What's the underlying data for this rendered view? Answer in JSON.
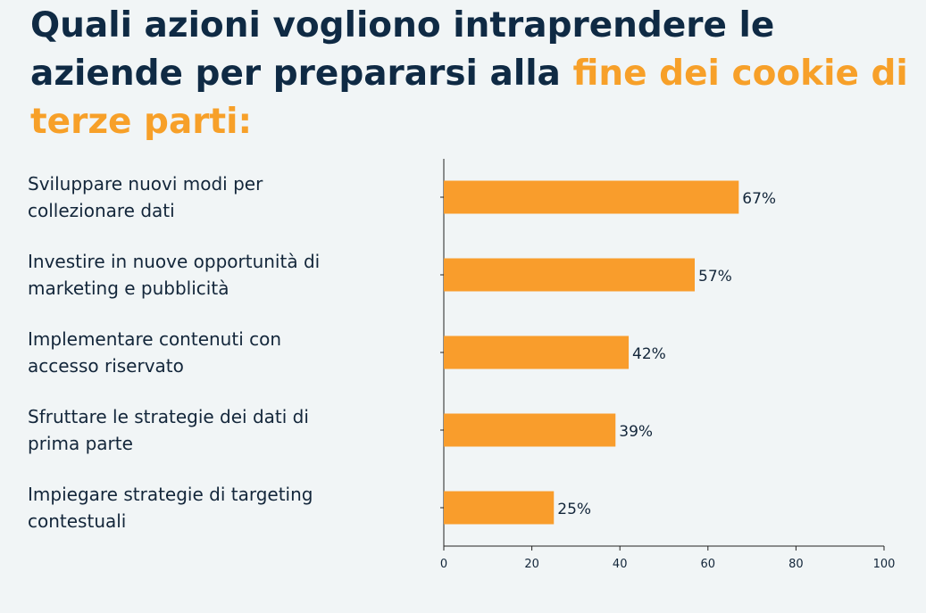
{
  "title": {
    "part1": "Quali azioni vogliono intraprendere le aziende per prepararsi alla ",
    "highlight": "fine dei cookie di terze parti:"
  },
  "colors": {
    "title": "#0f2a44",
    "highlight": "#f7a029",
    "bar": "#f99d2c",
    "background": "#f1f5f6",
    "text": "#13263a"
  },
  "chart_data": {
    "type": "bar",
    "orientation": "horizontal",
    "categories": [
      "Sviluppare nuovi modi per collezionare dati",
      "Investire in nuove opportunità di marketing e pubblicità",
      "Implementare contenuti con accesso riservato",
      "Sfruttare le strategie dei dati di prima parte",
      "Impiegare strategie di targeting contestuali"
    ],
    "category_lines": [
      [
        "Sviluppare nuovi modi per",
        "collezionare dati"
      ],
      [
        "Investire in nuove opportunità di",
        "marketing e pubblicità"
      ],
      [
        "Implementare contenuti con",
        "accesso riservato"
      ],
      [
        "Sfruttare le strategie dei dati di",
        "prima parte"
      ],
      [
        "Impiegare strategie di targeting",
        "contestuali"
      ]
    ],
    "values": [
      67,
      57,
      42,
      39,
      25
    ],
    "value_labels": [
      "67%",
      "57%",
      "42%",
      "39%",
      "25%"
    ],
    "xlim": [
      0,
      100
    ],
    "xticks": [
      0,
      20,
      40,
      60,
      80,
      100
    ],
    "xlabel": "",
    "ylabel": "",
    "grid": false,
    "legend": "none"
  }
}
